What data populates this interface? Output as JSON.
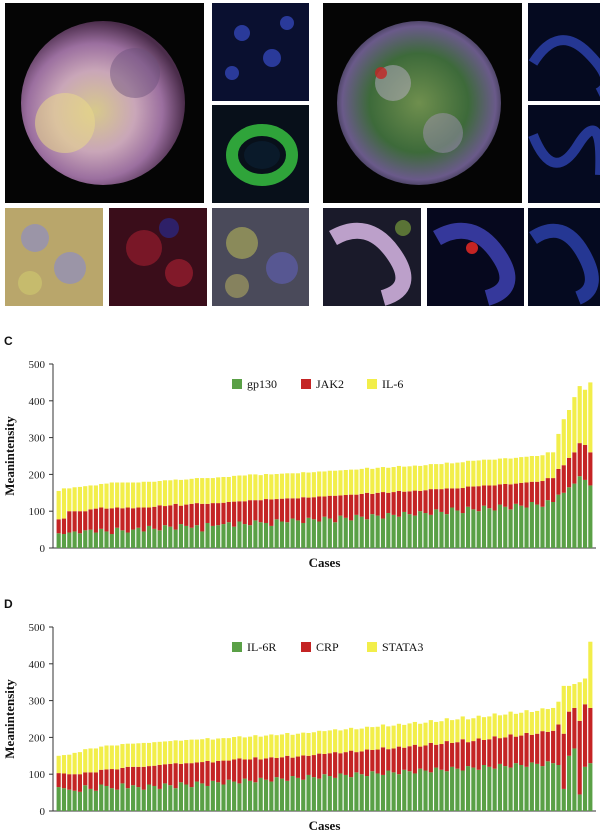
{
  "colors": {
    "gp130": "#5aa046",
    "JAK2": "#c42424",
    "IL6": "#f2ee4a",
    "IL6R": "#5aa046",
    "CRP": "#c42424",
    "STATA3": "#f2ee4a",
    "axis": "#333333",
    "grid": "#dddddd"
  },
  "images": {
    "left_big_scale": "",
    "right_big_scale": ""
  },
  "chart_c": {
    "panel_label": "C",
    "chart_data": {
      "type": "bar",
      "stacked": true,
      "title": "",
      "xlabel": "Cases",
      "ylabel": "Meanintensity",
      "ylim": [
        0,
        500
      ],
      "yticks": [
        0,
        100,
        200,
        300,
        400,
        500
      ],
      "legend_position": "top-center",
      "series": [
        {
          "name": "gp130",
          "values": [
            40,
            38,
            42,
            45,
            40,
            48,
            50,
            42,
            52,
            45,
            38,
            55,
            48,
            42,
            50,
            55,
            45,
            60,
            52,
            48,
            62,
            58,
            50,
            65,
            60,
            55,
            62,
            45,
            68,
            60,
            62,
            65,
            70,
            58,
            72,
            65,
            62,
            75,
            70,
            68,
            60,
            78,
            72,
            70,
            80,
            75,
            68,
            82,
            78,
            72,
            85,
            80,
            70,
            88,
            82,
            75,
            90,
            85,
            78,
            92,
            88,
            80,
            95,
            90,
            85,
            98,
            92,
            88,
            100,
            95,
            90,
            105,
            98,
            92,
            110,
            102,
            95,
            112,
            105,
            100,
            115,
            108,
            102,
            118,
            112,
            105,
            120,
            115,
            110,
            125,
            118,
            112,
            130,
            125,
            145,
            150,
            165,
            175,
            195,
            185,
            170
          ]
        },
        {
          "name": "JAK2",
          "values": [
            38,
            42,
            58,
            55,
            60,
            52,
            55,
            65,
            58,
            62,
            70,
            55,
            60,
            68,
            58,
            55,
            65,
            50,
            60,
            68,
            52,
            58,
            70,
            50,
            58,
            65,
            60,
            75,
            52,
            62,
            60,
            58,
            55,
            68,
            55,
            62,
            68,
            55,
            60,
            65,
            72,
            55,
            62,
            65,
            55,
            60,
            70,
            55,
            60,
            68,
            55,
            62,
            72,
            55,
            62,
            70,
            55,
            62,
            72,
            55,
            62,
            72,
            55,
            62,
            70,
            55,
            62,
            68,
            55,
            62,
            70,
            55,
            62,
            70,
            52,
            60,
            68,
            55,
            62,
            68,
            55,
            62,
            68,
            55,
            62,
            68,
            55,
            62,
            68,
            55,
            62,
            70,
            60,
            65,
            70,
            75,
            80,
            85,
            90,
            95,
            90
          ]
        },
        {
          "name": "IL-6",
          "values": [
            77,
            82,
            62,
            65,
            66,
            68,
            65,
            63,
            64,
            68,
            70,
            68,
            70,
            68,
            70,
            68,
            70,
            70,
            68,
            66,
            70,
            68,
            66,
            70,
            68,
            68,
            68,
            70,
            70,
            68,
            70,
            70,
            68,
            70,
            70,
            70,
            70,
            70,
            68,
            68,
            68,
            68,
            68,
            68,
            68,
            68,
            68,
            68,
            68,
            68,
            68,
            68,
            68,
            68,
            68,
            68,
            68,
            68,
            68,
            68,
            68,
            68,
            68,
            68,
            68,
            68,
            68,
            68,
            68,
            68,
            68,
            68,
            68,
            70,
            68,
            70,
            70,
            70,
            70,
            70,
            70,
            70,
            70,
            70,
            70,
            70,
            70,
            70,
            70,
            70,
            70,
            70,
            70,
            70,
            95,
            125,
            130,
            150,
            155,
            150,
            190
          ]
        }
      ]
    }
  },
  "chart_d": {
    "panel_label": "D",
    "chart_data": {
      "type": "bar",
      "stacked": true,
      "title": "",
      "xlabel": "Cases",
      "ylabel": "Meanintensity",
      "ylim": [
        0,
        500
      ],
      "yticks": [
        0,
        100,
        200,
        300,
        400,
        500
      ],
      "legend_position": "top-center",
      "series": [
        {
          "name": "IL-6R",
          "values": [
            65,
            62,
            58,
            55,
            52,
            70,
            60,
            55,
            72,
            68,
            62,
            58,
            75,
            62,
            70,
            65,
            58,
            72,
            68,
            60,
            75,
            70,
            62,
            78,
            72,
            65,
            80,
            75,
            68,
            82,
            78,
            72,
            85,
            80,
            75,
            88,
            82,
            78,
            90,
            85,
            80,
            92,
            88,
            82,
            95,
            90,
            85,
            98,
            92,
            88,
            100,
            95,
            90,
            102,
            98,
            92,
            105,
            100,
            95,
            108,
            102,
            98,
            110,
            105,
            100,
            112,
            108,
            102,
            115,
            110,
            105,
            118,
            112,
            108,
            120,
            115,
            110,
            122,
            118,
            112,
            125,
            120,
            115,
            128,
            122,
            118,
            130,
            125,
            120,
            132,
            128,
            122,
            135,
            130,
            125,
            60,
            150,
            170,
            45,
            120,
            130
          ]
        },
        {
          "name": "CRP",
          "values": [
            38,
            40,
            42,
            45,
            48,
            35,
            45,
            50,
            40,
            45,
            52,
            55,
            42,
            58,
            50,
            55,
            62,
            50,
            55,
            65,
            52,
            58,
            68,
            50,
            58,
            65,
            52,
            58,
            68,
            50,
            58,
            65,
            52,
            60,
            68,
            52,
            58,
            68,
            50,
            58,
            66,
            52,
            58,
            68,
            50,
            58,
            66,
            52,
            60,
            68,
            55,
            62,
            70,
            55,
            62,
            72,
            55,
            62,
            72,
            58,
            65,
            75,
            58,
            65,
            75,
            60,
            68,
            78,
            60,
            68,
            80,
            62,
            70,
            82,
            65,
            72,
            85,
            65,
            72,
            85,
            68,
            75,
            88,
            70,
            78,
            90,
            72,
            80,
            92,
            75,
            82,
            95,
            80,
            88,
            110,
            150,
            120,
            110,
            200,
            170,
            150
          ]
        },
        {
          "name": "STATA3",
          "values": [
            47,
            50,
            53,
            58,
            60,
            63,
            65,
            65,
            63,
            65,
            64,
            65,
            65,
            63,
            63,
            64,
            65,
            63,
            64,
            63,
            62,
            62,
            62,
            63,
            63,
            64,
            62,
            62,
            62,
            62,
            61,
            61,
            61,
            61,
            60,
            60,
            62,
            60,
            62,
            62,
            62,
            62,
            62,
            62,
            62,
            62,
            62,
            62,
            62,
            62,
            62,
            62,
            62,
            62,
            62,
            62,
            62,
            62,
            62,
            62,
            62,
            62,
            62,
            62,
            62,
            62,
            62,
            62,
            62,
            62,
            62,
            62,
            62,
            62,
            62,
            62,
            62,
            62,
            62,
            62,
            62,
            62,
            62,
            62,
            62,
            62,
            62,
            62,
            62,
            62,
            62,
            62,
            62,
            62,
            62,
            130,
            70,
            65,
            105,
            70,
            180
          ]
        }
      ]
    }
  }
}
